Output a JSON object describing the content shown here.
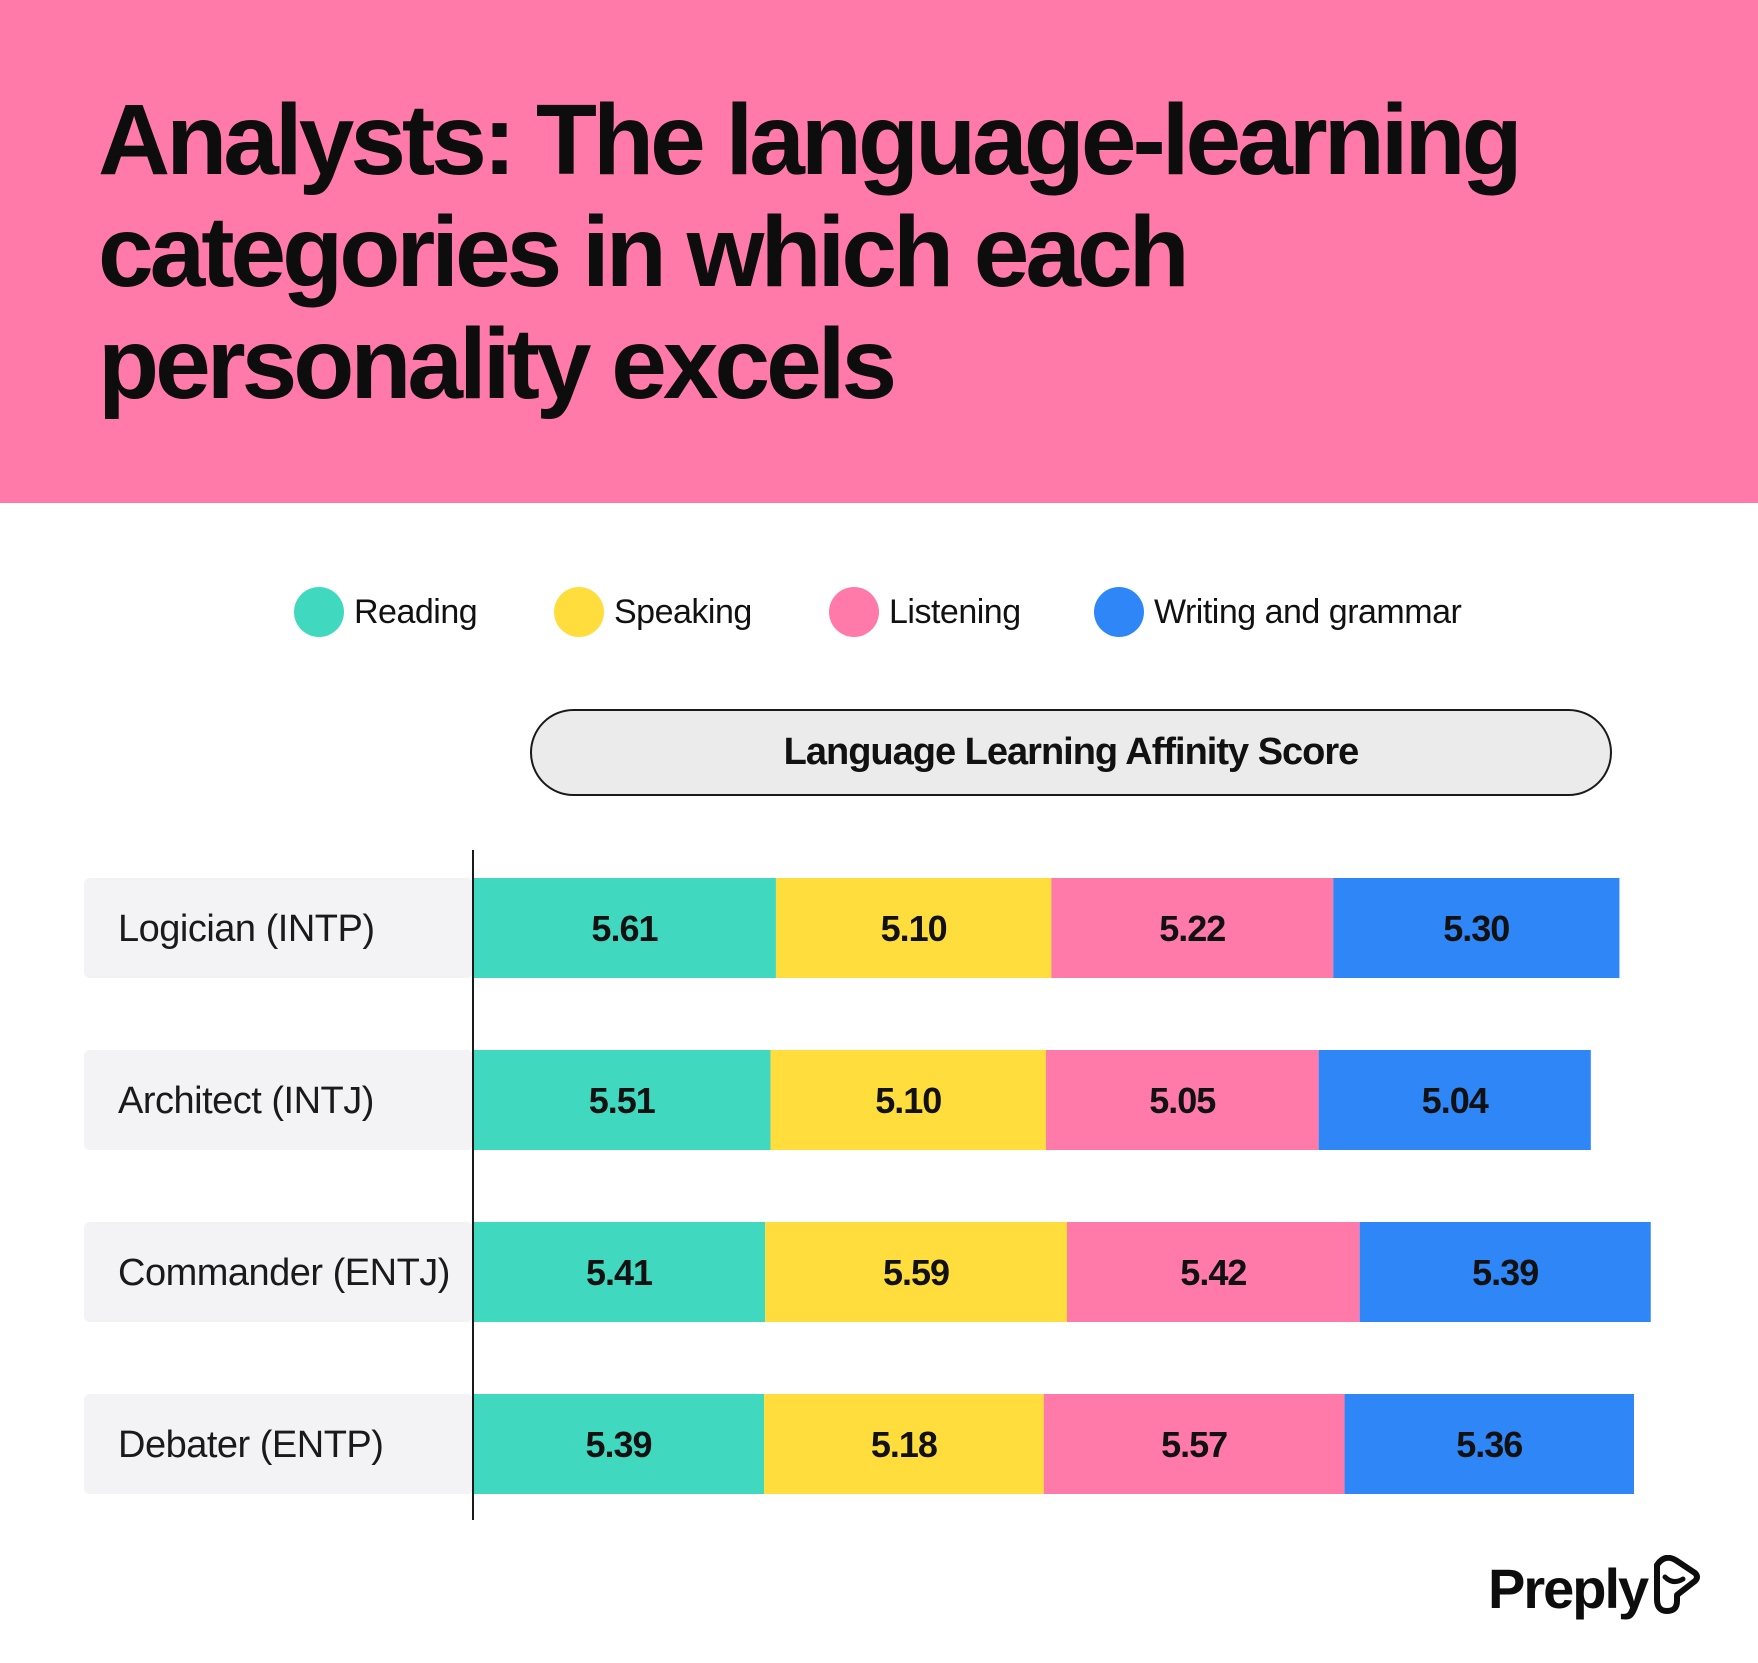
{
  "title": "Analysts: The language-learning categories in which each personality excels",
  "legend": [
    {
      "label": "Reading",
      "color": "#40d9c0"
    },
    {
      "label": "Speaking",
      "color": "#ffdd3c"
    },
    {
      "label": "Listening",
      "color": "#ff7aa8"
    },
    {
      "label": "Writing and grammar",
      "color": "#2f86f6"
    }
  ],
  "score_label": "Language Learning Affinity Score",
  "brand": {
    "name": "Preply",
    "icon": "preply-logo-icon"
  },
  "chart_data": {
    "type": "bar",
    "orientation": "horizontal",
    "stacked": true,
    "title": "Analysts: The language-learning categories in which each personality excels",
    "axis_title": "Language Learning Affinity Score",
    "categories": [
      "Logician (INTP)",
      "Architect (INTJ)",
      "Commander (ENTJ)",
      "Debater (ENTP)"
    ],
    "series": [
      {
        "name": "Reading",
        "color": "#40d9c0",
        "values": [
          5.61,
          5.51,
          5.41,
          5.39
        ]
      },
      {
        "name": "Speaking",
        "color": "#ffdd3c",
        "values": [
          5.1,
          5.1,
          5.59,
          5.18
        ]
      },
      {
        "name": "Listening",
        "color": "#ff7aa8",
        "values": [
          5.22,
          5.05,
          5.42,
          5.57
        ]
      },
      {
        "name": "Writing and grammar",
        "color": "#2f86f6",
        "values": [
          5.3,
          5.04,
          5.39,
          5.36
        ]
      }
    ],
    "value_labels": [
      [
        "5.61",
        "5.10",
        "5.22",
        "5.30"
      ],
      [
        "5.51",
        "5.10",
        "5.05",
        "5.04"
      ],
      [
        "5.41",
        "5.59",
        "5.42",
        "5.39"
      ],
      [
        "5.39",
        "5.18",
        "5.57",
        "5.36"
      ]
    ],
    "legend_position": "top",
    "grid": false
  }
}
